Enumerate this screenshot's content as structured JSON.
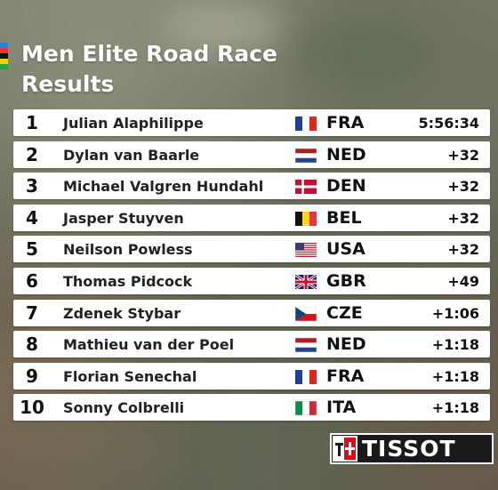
{
  "title": [
    "Men Elite Road Race",
    "Results"
  ],
  "results": [
    {
      "pos": "1",
      "name": "Julian Alaphilippe",
      "country": "FRA",
      "flag": "fra-flag-icon",
      "time": "5:56:34"
    },
    {
      "pos": "2",
      "name": "Dylan van Baarle",
      "country": "NED",
      "flag": "ned-flag-icon",
      "time": "+32"
    },
    {
      "pos": "3",
      "name": "Michael Valgren Hundahl",
      "country": "DEN",
      "flag": "den-flag-icon",
      "time": "+32"
    },
    {
      "pos": "4",
      "name": "Jasper Stuyven",
      "country": "BEL",
      "flag": "bel-flag-icon",
      "time": "+32"
    },
    {
      "pos": "5",
      "name": "Neilson Powless",
      "country": "USA",
      "flag": "usa-flag-icon",
      "time": "+32"
    },
    {
      "pos": "6",
      "name": "Thomas Pidcock",
      "country": "GBR",
      "flag": "gbr-flag-icon",
      "time": "+49"
    },
    {
      "pos": "7",
      "name": "Zdenek Stybar",
      "country": "CZE",
      "flag": "cze-flag-icon",
      "time": "+1:06"
    },
    {
      "pos": "8",
      "name": "Mathieu van der Poel",
      "country": "NED",
      "flag": "ned-flag-icon",
      "time": "+1:18"
    },
    {
      "pos": "9",
      "name": "Florian Senechal",
      "country": "FRA",
      "flag": "fra-flag-icon",
      "time": "+1:18"
    },
    {
      "pos": "10",
      "name": "Sonny Colbrelli",
      "country": "ITA",
      "flag": "ita-flag-icon",
      "time": "+1:18"
    }
  ],
  "sponsor": {
    "name": "TISSOT",
    "logo": "tissot-logo-icon"
  }
}
